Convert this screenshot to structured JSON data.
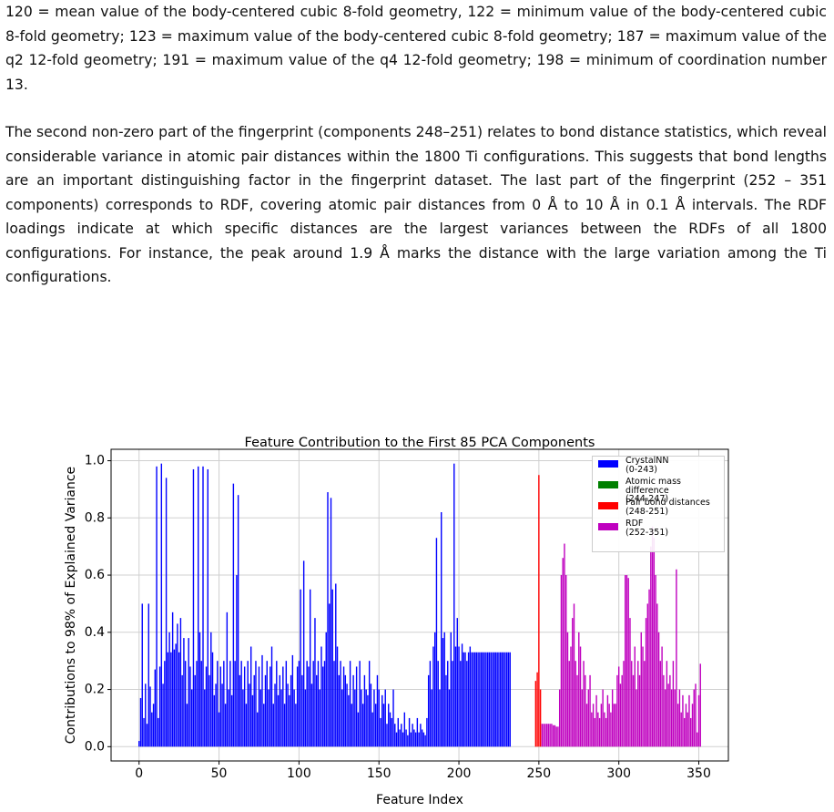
{
  "document": {
    "paragraphs": [
      "120 = mean value of the body-centered cubic 8-fold geometry, 122 = minimum value of the body-centered cubic 8-fold geometry; 123 = maximum value of the body-centered cubic 8-fold geometry; 187 = maximum value of the q2 12-fold geometry; 191 = maximum value of the q4 12-fold geometry; 198 = minimum of coordination number 13.",
      "The second non-zero part of the fingerprint (components 248–251) relates to bond distance statistics, which reveal considerable variance in atomic pair distances within the 1800 Ti configurations. This suggests that bond lengths are an important distinguishing factor in the fingerprint dataset. The last part of the fingerprint (252 – 351 components) corresponds to RDF, covering atomic pair distances from 0 Å to 10 Å in 0.1 Å intervals. The RDF loadings indicate at which specific distances are the largest variances between the RDFs of all 1800 configurations. For instance, the peak around 1.9 Å marks the distance with the large variation among the Ti configurations."
    ]
  },
  "chart_data": {
    "type": "bar",
    "title": "Feature Contribution to the First 85 PCA Components",
    "x_label": "Feature Index",
    "y_label": "Contributions to 98% of Explained Variance",
    "xlim": [
      -17.5,
      368.5
    ],
    "ylim": [
      -0.05,
      1.04
    ],
    "xticks": [
      0,
      50,
      100,
      150,
      200,
      250,
      300,
      350
    ],
    "yticks": [
      {
        "value": 0,
        "label": "0.0"
      },
      0.2,
      0.4,
      0.6,
      0.8,
      {
        "value": 1,
        "label": "1.0"
      }
    ],
    "grid": true,
    "series": [
      {
        "name": "CrystalNN\n(0-243)",
        "color": "#0000ff",
        "values": [
          0.02,
          0.17,
          0.5,
          0.1,
          0.22,
          0.08,
          0.5,
          0.21,
          0.12,
          0.15,
          0.27,
          0.98,
          0.1,
          0.28,
          0.99,
          0.22,
          0.3,
          0.94,
          0.33,
          0.4,
          0.33,
          0.47,
          0.34,
          0.36,
          0.43,
          0.33,
          0.45,
          0.25,
          0.38,
          0.3,
          0.15,
          0.38,
          0.28,
          0.2,
          0.97,
          0.25,
          0.3,
          0.98,
          0.4,
          0.3,
          0.98,
          0.2,
          0.28,
          0.97,
          0.25,
          0.4,
          0.33,
          0.18,
          0.22,
          0.3,
          0.12,
          0.28,
          0.22,
          0.3,
          0.15,
          0.47,
          0.2,
          0.3,
          0.18,
          0.92,
          0.3,
          0.6,
          0.88,
          0.25,
          0.3,
          0.2,
          0.28,
          0.15,
          0.3,
          0.22,
          0.35,
          0.18,
          0.25,
          0.3,
          0.12,
          0.28,
          0.2,
          0.32,
          0.15,
          0.25,
          0.3,
          0.2,
          0.28,
          0.35,
          0.15,
          0.22,
          0.3,
          0.18,
          0.25,
          0.2,
          0.28,
          0.15,
          0.3,
          0.22,
          0.18,
          0.25,
          0.32,
          0.2,
          0.15,
          0.28,
          0.3,
          0.55,
          0.25,
          0.65,
          0.2,
          0.3,
          0.28,
          0.55,
          0.22,
          0.3,
          0.45,
          0.25,
          0.3,
          0.2,
          0.35,
          0.28,
          0.3,
          0.4,
          0.89,
          0.5,
          0.87,
          0.55,
          0.3,
          0.57,
          0.35,
          0.25,
          0.3,
          0.2,
          0.28,
          0.25,
          0.22,
          0.18,
          0.3,
          0.15,
          0.25,
          0.2,
          0.28,
          0.12,
          0.3,
          0.2,
          0.15,
          0.25,
          0.2,
          0.18,
          0.3,
          0.22,
          0.12,
          0.2,
          0.15,
          0.25,
          0.2,
          0.1,
          0.18,
          0.15,
          0.2,
          0.08,
          0.15,
          0.12,
          0.1,
          0.2,
          0.08,
          0.05,
          0.1,
          0.06,
          0.08,
          0.05,
          0.12,
          0.06,
          0.04,
          0.1,
          0.05,
          0.08,
          0.06,
          0.05,
          0.1,
          0.05,
          0.08,
          0.06,
          0.05,
          0.04,
          0.1,
          0.25,
          0.3,
          0.2,
          0.35,
          0.4,
          0.73,
          0.3,
          0.2,
          0.82,
          0.38,
          0.4,
          0.25,
          0.3,
          0.2,
          0.4,
          0.3,
          0.99,
          0.35,
          0.45,
          0.35,
          0.3,
          0.36,
          0.33,
          0.33,
          0.3,
          0.33,
          0.35,
          0.33,
          0.33,
          0.33,
          0.33,
          0.33,
          0.33,
          0.33,
          0.33,
          0.33,
          0.33,
          0.33,
          0.33,
          0.33,
          0.33,
          0.33,
          0.33,
          0.33,
          0.33,
          0.33,
          0.33,
          0.33,
          0.33,
          0.33,
          0.33,
          0.33,
          0,
          0,
          0,
          0,
          0,
          0,
          0,
          0,
          0,
          0,
          0
        ]
      },
      {
        "name": "Atomic mass difference\n(244-247)",
        "color": "#008000",
        "values": [
          0,
          0,
          0,
          0
        ]
      },
      {
        "name": "Pair bond distances\n(248-251)",
        "color": "#ff0000",
        "values": [
          0.23,
          0.26,
          0.95,
          0.2
        ]
      },
      {
        "name": "RDF\n(252-351)",
        "color": "#bf00bf",
        "values": [
          0.08,
          0.08,
          0.08,
          0.08,
          0.08,
          0.08,
          0.08,
          0.075,
          0.075,
          0.07,
          0.07,
          0.2,
          0.6,
          0.66,
          0.71,
          0.6,
          0.4,
          0.3,
          0.35,
          0.45,
          0.5,
          0.3,
          0.25,
          0.4,
          0.35,
          0.2,
          0.3,
          0.25,
          0.15,
          0.2,
          0.25,
          0.12,
          0.15,
          0.1,
          0.18,
          0.12,
          0.1,
          0.15,
          0.2,
          0.12,
          0.1,
          0.18,
          0.15,
          0.12,
          0.2,
          0.15,
          0.15,
          0.25,
          0.28,
          0.22,
          0.25,
          0.3,
          0.6,
          0.6,
          0.59,
          0.45,
          0.3,
          0.25,
          0.35,
          0.2,
          0.3,
          0.25,
          0.4,
          0.35,
          0.3,
          0.45,
          0.5,
          0.55,
          0.7,
          0.77,
          0.73,
          0.6,
          0.5,
          0.4,
          0.3,
          0.35,
          0.25,
          0.2,
          0.3,
          0.22,
          0.25,
          0.2,
          0.3,
          0.2,
          0.62,
          0.15,
          0.2,
          0.12,
          0.18,
          0.1,
          0.15,
          0.12,
          0.18,
          0.1,
          0.15,
          0.2,
          0.22,
          0.05,
          0.18,
          0.29
        ]
      }
    ]
  }
}
